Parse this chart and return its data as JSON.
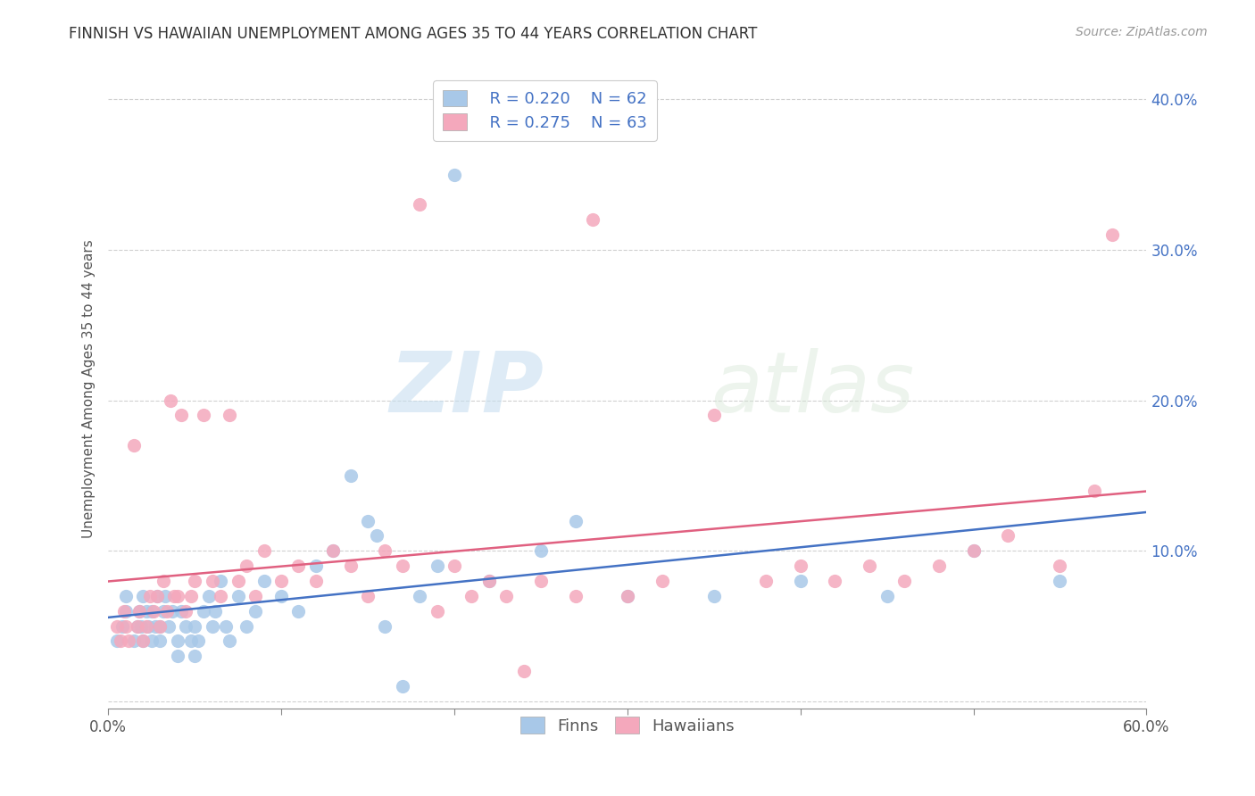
{
  "title": "FINNISH VS HAWAIIAN UNEMPLOYMENT AMONG AGES 35 TO 44 YEARS CORRELATION CHART",
  "source": "Source: ZipAtlas.com",
  "ylabel": "Unemployment Among Ages 35 to 44 years",
  "xlim": [
    0.0,
    0.6
  ],
  "ylim": [
    -0.005,
    0.42
  ],
  "legend_r_finns": "R = 0.220",
  "legend_n_finns": "N = 62",
  "legend_r_hawaiians": "R = 0.275",
  "legend_n_hawaiians": "N = 63",
  "finns_color": "#a8c8e8",
  "hawaiians_color": "#f4a8bc",
  "finns_line_color": "#4472c4",
  "hawaiians_line_color": "#e06080",
  "legend_text_color": "#4472c4",
  "watermark_zip": "ZIP",
  "watermark_atlas": "atlas",
  "background_color": "#ffffff",
  "grid_color": "#d0d0d0",
  "finns_x": [
    0.005,
    0.008,
    0.01,
    0.01,
    0.015,
    0.017,
    0.018,
    0.019,
    0.02,
    0.02,
    0.022,
    0.023,
    0.025,
    0.025,
    0.027,
    0.028,
    0.03,
    0.03,
    0.032,
    0.033,
    0.035,
    0.037,
    0.04,
    0.04,
    0.042,
    0.045,
    0.048,
    0.05,
    0.05,
    0.052,
    0.055,
    0.058,
    0.06,
    0.062,
    0.065,
    0.068,
    0.07,
    0.075,
    0.08,
    0.085,
    0.09,
    0.1,
    0.11,
    0.12,
    0.13,
    0.14,
    0.15,
    0.155,
    0.16,
    0.17,
    0.18,
    0.19,
    0.2,
    0.22,
    0.25,
    0.27,
    0.3,
    0.35,
    0.4,
    0.45,
    0.5,
    0.55
  ],
  "finns_y": [
    0.04,
    0.05,
    0.06,
    0.07,
    0.04,
    0.05,
    0.06,
    0.05,
    0.04,
    0.07,
    0.06,
    0.05,
    0.04,
    0.06,
    0.05,
    0.07,
    0.04,
    0.05,
    0.06,
    0.07,
    0.05,
    0.06,
    0.04,
    0.03,
    0.06,
    0.05,
    0.04,
    0.03,
    0.05,
    0.04,
    0.06,
    0.07,
    0.05,
    0.06,
    0.08,
    0.05,
    0.04,
    0.07,
    0.05,
    0.06,
    0.08,
    0.07,
    0.06,
    0.09,
    0.1,
    0.15,
    0.12,
    0.11,
    0.05,
    0.01,
    0.07,
    0.09,
    0.35,
    0.08,
    0.1,
    0.12,
    0.07,
    0.07,
    0.08,
    0.07,
    0.1,
    0.08
  ],
  "hawaiians_x": [
    0.005,
    0.007,
    0.009,
    0.01,
    0.012,
    0.015,
    0.017,
    0.018,
    0.02,
    0.022,
    0.024,
    0.026,
    0.028,
    0.03,
    0.032,
    0.034,
    0.036,
    0.038,
    0.04,
    0.042,
    0.045,
    0.048,
    0.05,
    0.055,
    0.06,
    0.065,
    0.07,
    0.075,
    0.08,
    0.085,
    0.09,
    0.1,
    0.11,
    0.12,
    0.13,
    0.14,
    0.15,
    0.16,
    0.17,
    0.18,
    0.19,
    0.2,
    0.21,
    0.22,
    0.23,
    0.24,
    0.25,
    0.27,
    0.28,
    0.3,
    0.32,
    0.35,
    0.38,
    0.4,
    0.42,
    0.44,
    0.46,
    0.48,
    0.5,
    0.52,
    0.55,
    0.57,
    0.58
  ],
  "hawaiians_y": [
    0.05,
    0.04,
    0.06,
    0.05,
    0.04,
    0.17,
    0.05,
    0.06,
    0.04,
    0.05,
    0.07,
    0.06,
    0.07,
    0.05,
    0.08,
    0.06,
    0.2,
    0.07,
    0.07,
    0.19,
    0.06,
    0.07,
    0.08,
    0.19,
    0.08,
    0.07,
    0.19,
    0.08,
    0.09,
    0.07,
    0.1,
    0.08,
    0.09,
    0.08,
    0.1,
    0.09,
    0.07,
    0.1,
    0.09,
    0.33,
    0.06,
    0.09,
    0.07,
    0.08,
    0.07,
    0.02,
    0.08,
    0.07,
    0.32,
    0.07,
    0.08,
    0.19,
    0.08,
    0.09,
    0.08,
    0.09,
    0.08,
    0.09,
    0.1,
    0.11,
    0.09,
    0.14,
    0.31
  ]
}
